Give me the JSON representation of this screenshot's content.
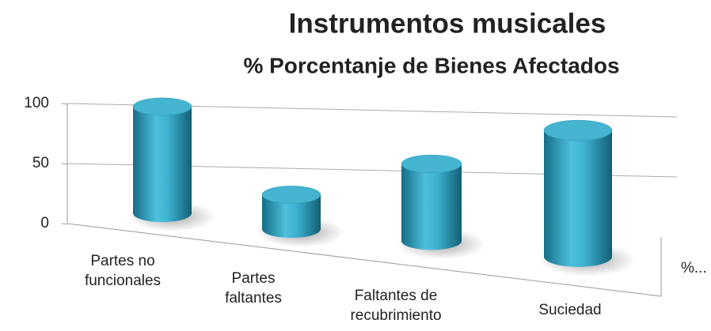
{
  "chart_data": {
    "type": "bar3d",
    "title": "Instrumentos musicales",
    "subtitle": "% Porcentanje de Bienes Afectados",
    "categories": [
      "Partes no funcionales",
      "Partes faltantes",
      "Faltantes de recubrimiento",
      "Suciedad"
    ],
    "series": [
      {
        "name": "%...",
        "color": "#2aa3c2",
        "values": [
          100,
          30,
          65,
          100
        ]
      }
    ],
    "ylim": [
      0,
      100
    ],
    "yticks": [
      0,
      50,
      100
    ],
    "grid": true
  }
}
